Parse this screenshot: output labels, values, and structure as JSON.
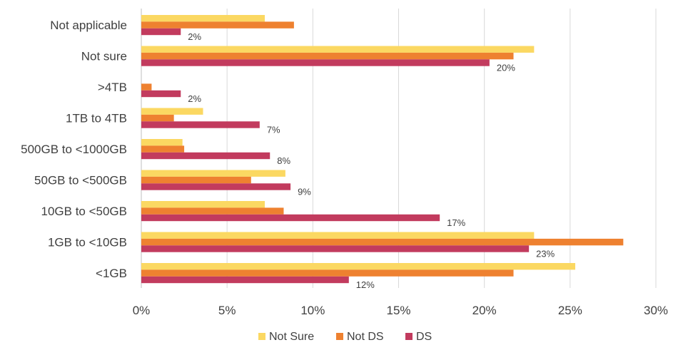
{
  "colors": {
    "not_sure": "#fbd862",
    "not_ds": "#ee8130",
    "ds": "#c23b5e",
    "grid": "#d9d9d9",
    "text": "#404040"
  },
  "chart_data": {
    "type": "bar",
    "orientation": "horizontal",
    "title": "",
    "xlabel": "",
    "ylabel": "",
    "xlim": [
      0,
      30
    ],
    "x_ticks": [
      "0%",
      "5%",
      "10%",
      "15%",
      "20%",
      "25%",
      "30%"
    ],
    "x_tick_values": [
      0,
      5,
      10,
      15,
      20,
      25,
      30
    ],
    "grid": true,
    "legend_position": "bottom",
    "categories": [
      "Not applicable",
      "Not sure",
      ">4TB",
      "1TB to 4TB",
      "500GB to <1000GB",
      "50GB to <500GB",
      "10GB to <50GB",
      "1GB to <10GB",
      "<1GB"
    ],
    "series": [
      {
        "name": "Not Sure",
        "key": "not_sure",
        "values": [
          7.2,
          22.9,
          0,
          3.6,
          2.4,
          8.4,
          7.2,
          22.9,
          25.3
        ],
        "labels": [
          "",
          "",
          "",
          "",
          "",
          "",
          "",
          "",
          ""
        ]
      },
      {
        "name": "Not DS",
        "key": "not_ds",
        "values": [
          8.9,
          21.7,
          0.6,
          1.9,
          2.5,
          6.4,
          8.3,
          28.1,
          21.7
        ],
        "labels": [
          "",
          "",
          "",
          "",
          "",
          "",
          "",
          "",
          ""
        ]
      },
      {
        "name": "DS",
        "key": "ds",
        "values": [
          2.3,
          20.3,
          2.3,
          6.9,
          7.5,
          8.7,
          17.4,
          22.6,
          12.1
        ],
        "labels": [
          "2%",
          "20%",
          "2%",
          "7%",
          "8%",
          "9%",
          "17%",
          "23%",
          "12%"
        ]
      }
    ]
  }
}
